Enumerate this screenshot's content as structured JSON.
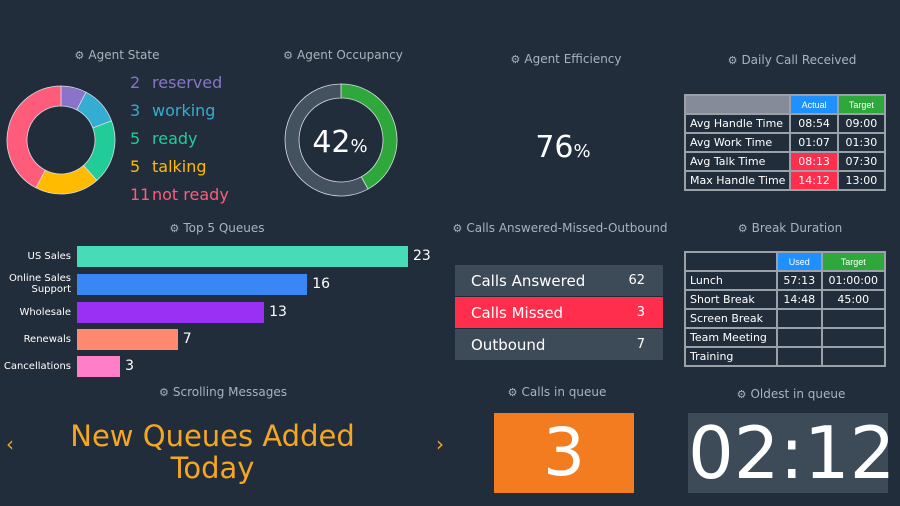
{
  "agent_state": {
    "title": "Agent State",
    "items": [
      {
        "count": "2",
        "label": "reserved",
        "value": 2,
        "color": "#8a74c9"
      },
      {
        "count": "3",
        "label": "working",
        "value": 3,
        "color": "#35acd2"
      },
      {
        "count": "5",
        "label": "ready",
        "value": 5,
        "color": "#22cc99"
      },
      {
        "count": "5",
        "label": "talking",
        "value": 5,
        "color": "#ffbb00"
      },
      {
        "count": "11",
        "label": "not ready",
        "value": 11,
        "color": "#ff5c7c"
      }
    ]
  },
  "agent_occupancy": {
    "title": "Agent Occupancy",
    "value": "42",
    "unit": "%",
    "percent": 42,
    "color": "#2ea83a"
  },
  "agent_efficiency": {
    "title": "Agent Efficiency",
    "value": "76",
    "unit": "%",
    "percent": 76,
    "color": "#2ea83a"
  },
  "daily_calls": {
    "title": "Daily Call Received",
    "headers": [
      "",
      "Actual",
      "Target"
    ],
    "rows": [
      {
        "label": "Avg Handle Time",
        "actual": "08:54",
        "target": "09:00",
        "alert": false
      },
      {
        "label": "Avg Work Time",
        "actual": "01:07",
        "target": "01:30",
        "alert": false
      },
      {
        "label": "Avg Talk Time",
        "actual": "08:13",
        "target": "07:30",
        "alert": true
      },
      {
        "label": "Max Handle Time",
        "actual": "14:12",
        "target": "13:00",
        "alert": true
      }
    ]
  },
  "top_queues": {
    "title": "Top 5 Queues",
    "items": [
      {
        "label": "US Sales",
        "value": 23,
        "color": "#48dbb8"
      },
      {
        "label": "Online Sales Support",
        "value": 16,
        "color": "#3a86f5"
      },
      {
        "label": "Wholesale",
        "value": 13,
        "color": "#9b30f5"
      },
      {
        "label": "Renewals",
        "value": 7,
        "color": "#ff8870"
      },
      {
        "label": "Cancellations",
        "value": 3,
        "color": "#ff7ec8"
      }
    ]
  },
  "calls_amo": {
    "title": "Calls Answered-Missed-Outbound",
    "rows": [
      {
        "label": "Calls Answered",
        "value": "62",
        "bg": "#3d4a57"
      },
      {
        "label": "Calls Missed",
        "value": "3",
        "bg": "#ff2e4d"
      },
      {
        "label": "Outbound",
        "value": "7",
        "bg": "#3d4a57"
      }
    ]
  },
  "break_duration": {
    "title": "Break Duration",
    "headers": [
      "",
      "Used",
      "Target"
    ],
    "rows": [
      {
        "label": "Lunch",
        "used": "57:13",
        "target": "01:00:00"
      },
      {
        "label": "Short Break",
        "used": "14:48",
        "target": "45:00"
      },
      {
        "label": "Screen Break",
        "used": "",
        "target": ""
      },
      {
        "label": "Team Meeting",
        "used": "",
        "target": ""
      },
      {
        "label": "Training",
        "used": "",
        "target": ""
      }
    ]
  },
  "scrolling": {
    "title": "Scrolling Messages",
    "message": "New Queues Added Today",
    "color": "#f5a623"
  },
  "calls_in_queue": {
    "title": "Calls in queue",
    "value": "3",
    "bg": "#f47c20"
  },
  "oldest_in_queue": {
    "title": "Oldest in queue",
    "value": "02:12",
    "bg": "#3d4a57"
  }
}
